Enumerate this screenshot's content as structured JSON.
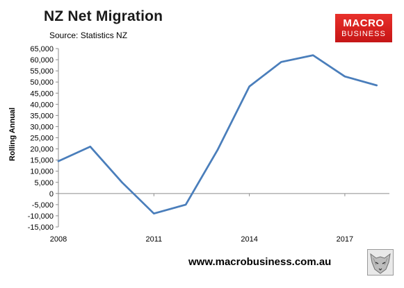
{
  "header": {
    "title": "NZ Net Migration",
    "source": "Source: Statistics NZ"
  },
  "logo": {
    "line1": "MACRO",
    "line2": "BUSINESS"
  },
  "footer": {
    "url": "www.macrobusiness.com.au",
    "mascot_icon": "wolf-icon"
  },
  "colors": {
    "line": "#4a7ebb",
    "logo_red": "#d41f1d",
    "axis": "#8c8c8c"
  },
  "chart_data": {
    "type": "line",
    "title": "NZ Net Migration",
    "xlabel": "",
    "ylabel": "Rolling Annual",
    "ylim": [
      -15000,
      65000
    ],
    "yticks": [
      -15000,
      -10000,
      -5000,
      0,
      5000,
      10000,
      15000,
      20000,
      25000,
      30000,
      35000,
      40000,
      45000,
      50000,
      55000,
      60000,
      65000
    ],
    "ytick_labels": [
      "-15,000",
      "-10,000",
      "-5,000",
      "0",
      "5,000",
      "10,000",
      "15,000",
      "20,000",
      "25,000",
      "30,000",
      "35,000",
      "40,000",
      "45,000",
      "50,000",
      "55,000",
      "60,000",
      "65,000"
    ],
    "xlim": [
      2008,
      2018.4
    ],
    "xticks": [
      2008,
      2011,
      2014,
      2017
    ],
    "xtick_labels": [
      "2008",
      "2011",
      "2014",
      "2017"
    ],
    "grid": false,
    "series": [
      {
        "x": [
          2008,
          2009,
          2010,
          2011,
          2012,
          2013,
          2014,
          2015,
          2016,
          2017,
          2018
        ],
        "values": [
          14500,
          21000,
          5000,
          -9000,
          -5000,
          19500,
          48000,
          59000,
          62000,
          52500,
          48500
        ]
      }
    ]
  }
}
